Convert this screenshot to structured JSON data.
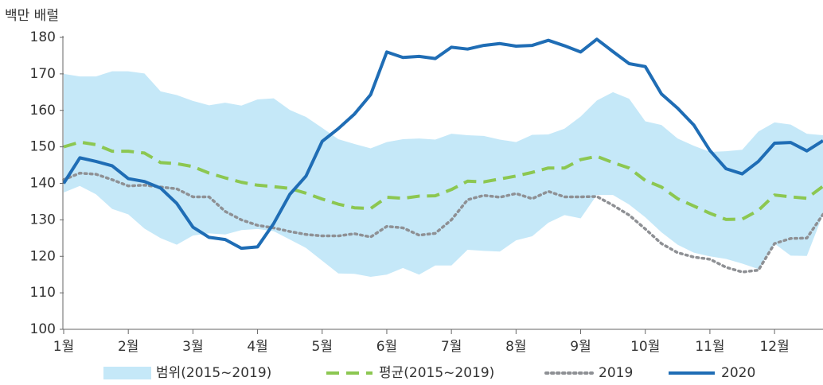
{
  "chart_data": {
    "type": "line",
    "y_label": "백만 배럴",
    "x": [
      0,
      1,
      2,
      3,
      4,
      5,
      6,
      7,
      8,
      9,
      10,
      11,
      12,
      13,
      14,
      15,
      16,
      17,
      18,
      19,
      20,
      21,
      22,
      23,
      24,
      25,
      26,
      27,
      28,
      29,
      30,
      31,
      32,
      33,
      34,
      35,
      36,
      37,
      38,
      39,
      40,
      41,
      42,
      43,
      44,
      45,
      46,
      47
    ],
    "xlim": [
      0,
      47
    ],
    "xticks": [
      {
        "value": 0,
        "label": "1월"
      },
      {
        "value": 4,
        "label": "2월"
      },
      {
        "value": 8,
        "label": "3월"
      },
      {
        "value": 12,
        "label": "4월"
      },
      {
        "value": 16,
        "label": "5월"
      },
      {
        "value": 20,
        "label": "6월"
      },
      {
        "value": 24,
        "label": "7월"
      },
      {
        "value": 28,
        "label": "8월"
      },
      {
        "value": 32,
        "label": "9월"
      },
      {
        "value": 36,
        "label": "10월"
      },
      {
        "value": 40,
        "label": "11월"
      },
      {
        "value": 44,
        "label": "12월"
      }
    ],
    "ylim": [
      100,
      180
    ],
    "yticks": [
      100,
      110,
      120,
      130,
      140,
      150,
      160,
      170,
      180
    ],
    "series": [
      {
        "name": "범위(2015~2019)",
        "color": "#c5e8f8",
        "style": "band",
        "values": [
          170,
          169.3,
          169.3,
          170.7,
          170.7,
          170.1,
          165.2,
          164.2,
          162.6,
          161.4,
          162.1,
          161.3,
          163,
          163.3,
          160.1,
          158.2,
          155.2,
          152.1,
          150.8,
          149.6,
          151.3,
          152.1,
          152.3,
          152,
          153.6,
          153.2,
          153,
          152,
          151.3,
          153.3,
          153.4,
          155,
          158.3,
          162.7,
          165,
          163.2,
          157,
          156,
          152.3,
          150.3,
          148.6,
          148.8,
          149.2,
          154.2,
          156.7,
          156.1,
          153.6,
          153.2
        ],
        "low": [
          137.5,
          139.3,
          137,
          133,
          131.5,
          127.6,
          125,
          123.2,
          125.7,
          126.3,
          126,
          127.2,
          127.5,
          126.9,
          124.6,
          122.3,
          118.8,
          115.3,
          115.2,
          114.4,
          115,
          116.8,
          115,
          117.5,
          117.5,
          121.8,
          121.5,
          121.3,
          124.4,
          125.5,
          129.2,
          131.3,
          130.4,
          136.8,
          136.8,
          134.2,
          130.7,
          126.6,
          123.2,
          121,
          120,
          119.3,
          118,
          116.5,
          123.5,
          120.2,
          120.1,
          131.5
        ]
      },
      {
        "name": "평균(2015~2019)",
        "color": "#8cc751",
        "style": "dashed",
        "values": [
          150,
          151.3,
          150.6,
          148.8,
          148.8,
          148.3,
          145.7,
          145.4,
          144.6,
          142.8,
          141.5,
          140.3,
          139.5,
          139.1,
          138.6,
          137.3,
          135.7,
          134.3,
          133.3,
          133.1,
          136.2,
          135.9,
          136.5,
          136.6,
          138.3,
          140.6,
          140.4,
          141.2,
          142,
          143,
          144.2,
          144.2,
          146.5,
          147.4,
          145.7,
          144.2,
          140.8,
          139,
          135.8,
          133.8,
          131.8,
          130.1,
          130.2,
          132.6,
          136.8,
          136.3,
          135.9,
          139.2
        ]
      },
      {
        "name": "2019",
        "color": "#8e9094",
        "style": "dotted",
        "values": [
          141,
          142.8,
          142.5,
          141,
          139.3,
          139.5,
          139,
          138.5,
          136.3,
          136.3,
          132.3,
          130,
          128.5,
          127.8,
          126.8,
          126,
          125.6,
          125.6,
          126.2,
          125.3,
          128.2,
          127.8,
          125.8,
          126.3,
          130,
          135.5,
          136.7,
          136.2,
          137.2,
          135.8,
          137.8,
          136.3,
          136.3,
          136.4,
          134,
          131.3,
          127.5,
          123.5,
          121,
          119.8,
          119.2,
          117,
          115.7,
          116.2,
          123.5,
          124.9,
          125,
          131.5
        ]
      },
      {
        "name": "2020",
        "color": "#1f6db5",
        "style": "solid",
        "values": [
          140,
          147,
          146,
          144.8,
          141.3,
          140.5,
          138.7,
          134.5,
          128,
          125.2,
          124.6,
          122.2,
          122.6,
          129,
          137,
          142,
          151.5,
          155,
          159,
          164.3,
          176,
          174.5,
          174.8,
          174.2,
          177.3,
          176.8,
          177.8,
          178.3,
          177.6,
          177.8,
          179.2,
          177.7,
          176,
          179.5,
          176.1,
          172.8,
          172,
          164.5,
          160.6,
          156,
          149,
          144,
          142.6,
          146,
          151,
          151.2,
          148.9,
          151.7
        ]
      }
    ]
  }
}
